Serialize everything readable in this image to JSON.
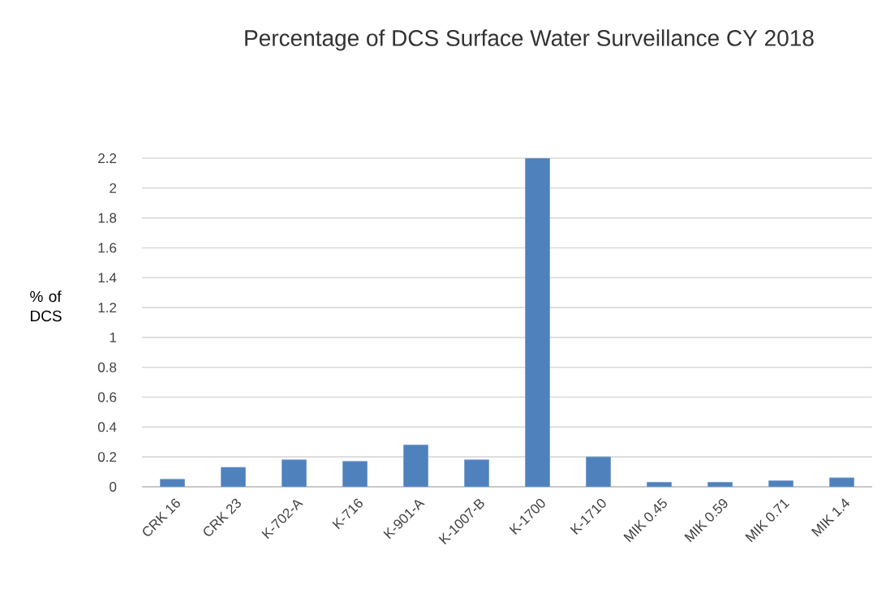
{
  "chart_data": {
    "type": "bar",
    "title": "Percentage of DCS Surface Water Surveillance CY 2018",
    "ylabel": "% of DCS",
    "categories": [
      "CRK 16",
      "CRK 23",
      "K-702-A",
      "K-716",
      "K-901-A",
      "K-1007-B",
      "K-1700",
      "K-1710",
      "MIK 0.45",
      "MIK 0.59",
      "MIK 0.71",
      "MIK 1.4"
    ],
    "values": [
      0.05,
      0.13,
      0.18,
      0.17,
      0.28,
      0.18,
      2.2,
      0.2,
      0.03,
      0.03,
      0.04,
      0.06
    ],
    "color": "#4f81bd",
    "ylim": [
      0,
      2.2
    ],
    "yticks": [
      0,
      0.2,
      0.4,
      0.6,
      0.8,
      1,
      1.2,
      1.4,
      1.6,
      1.8,
      2,
      2.2
    ],
    "grid": "y"
  }
}
